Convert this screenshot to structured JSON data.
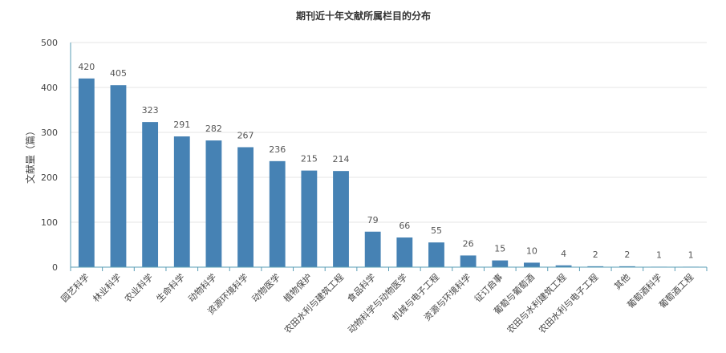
{
  "chart_data": {
    "type": "bar",
    "title": "期刊近十年文献所属栏目的分布",
    "xlabel": "",
    "ylabel": "文献量（篇）",
    "ylim": [
      0,
      500
    ],
    "yticks": [
      0,
      100,
      200,
      300,
      400,
      500
    ],
    "grid": true,
    "legend": "none",
    "bar_color": "#4682b4",
    "categories": [
      "园艺科学",
      "林业科学",
      "农业科学",
      "生命科学",
      "动物科学",
      "资源环境科学",
      "动物医学",
      "植物保护",
      "农田水利与建筑工程",
      "食品科学",
      "动物科学与动物医学",
      "机械与电子工程",
      "资源与环境科学",
      "征订启事",
      "葡萄与葡萄酒",
      "农田与水利建筑工程",
      "农田水利与电子工程",
      "其他",
      "葡萄酒科学",
      "葡萄酒工程"
    ],
    "values": [
      420,
      405,
      323,
      291,
      282,
      267,
      236,
      215,
      214,
      79,
      66,
      55,
      26,
      15,
      10,
      4,
      2,
      2,
      1,
      1
    ]
  }
}
